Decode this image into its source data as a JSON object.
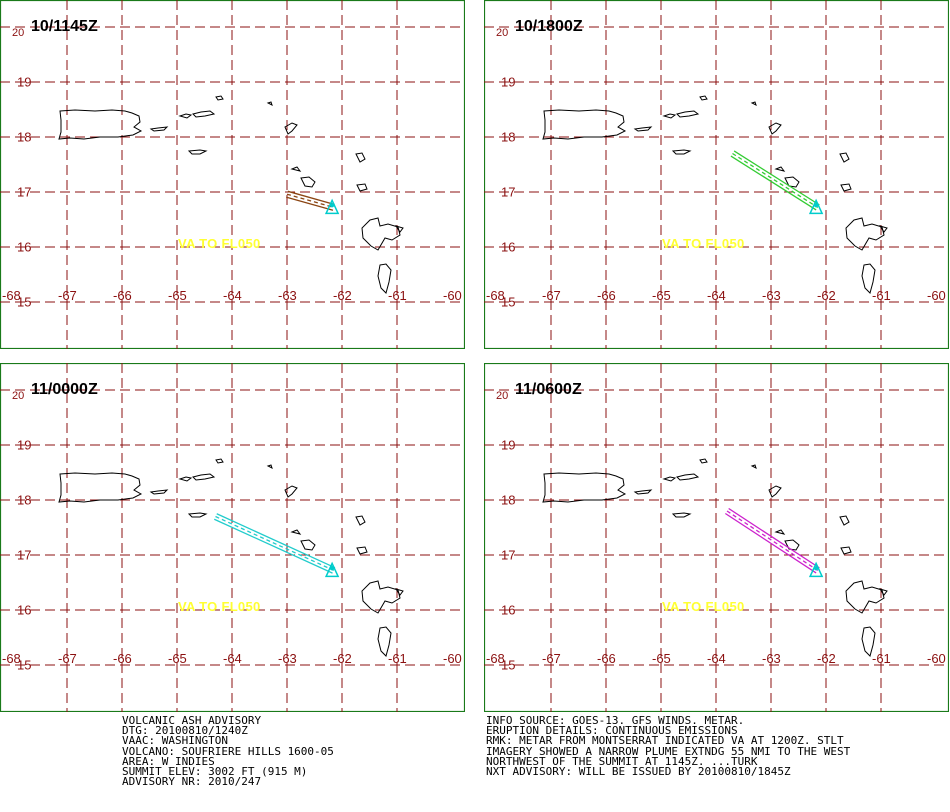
{
  "map": {
    "lon_min": -68,
    "lon_max": -60,
    "lat_min": 15,
    "lat_max": 20,
    "x_ticks": [
      "-68",
      "-67",
      "-66",
      "-65",
      "-64",
      "-63",
      "-62",
      "-61",
      "-60"
    ],
    "y_ticks": [
      "20",
      "19",
      "18",
      "17",
      "16",
      "15"
    ],
    "colors": {
      "frame": "#1a7a1a",
      "grid": "#8b1010",
      "coast": "#000000",
      "volcano": "#00cccc",
      "label": "#ffff33"
    },
    "volcano": {
      "lon": -62.18,
      "lat": 16.72
    }
  },
  "panels": [
    {
      "time": "10/1145Z",
      "level": "VA  TO  FL050",
      "plume_color": "#8b4513",
      "plume": [
        [
          -63,
          16.96
        ],
        [
          -62.15,
          16.72
        ]
      ]
    },
    {
      "time": "10/1800Z",
      "level": "VA  TO  FL050",
      "plume_color": "#33cc33",
      "plume": [
        [
          -63.7,
          17.7
        ],
        [
          -62.15,
          16.72
        ]
      ]
    },
    {
      "time": "11/0000Z",
      "level": "VA  TO  FL050",
      "plume_color": "#22cccc",
      "plume": [
        [
          -64.3,
          17.7
        ],
        [
          -62.15,
          16.72
        ]
      ]
    },
    {
      "time": "11/0600Z",
      "level": "VA  TO  FL050",
      "plume_color": "#cc22cc",
      "plume": [
        [
          -63.8,
          17.8
        ],
        [
          -62.15,
          16.72
        ]
      ]
    }
  ],
  "advisory": {
    "left": [
      "VOLCANIC ASH ADVISORY",
      "DTG: 20100810/1240Z",
      "VAAC: WASHINGTON",
      "VOLCANO: SOUFRIERE HILLS 1600-05",
      "AREA: W_INDIES",
      "SUMMIT ELEV: 3002 FT (915 M)",
      "ADVISORY NR: 2010/247"
    ],
    "right": [
      "INFO SOURCE: GOES-13. GFS WINDS. METAR.",
      "ERUPTION DETAILS: CONTINUOUS EMISSIONS",
      "RMK: METAR FROM MONTSERRAT INDICATED VA AT 1200Z. STLT",
      "IMAGERY SHOWED A NARROW PLUME EXTNDG 55 NMI TO THE WEST",
      "NORTHWEST OF THE SUMMIT AT 1145Z. ...TURK",
      "NXT ADVISORY: WILL BE ISSUED BY 20100810/1845Z"
    ]
  }
}
